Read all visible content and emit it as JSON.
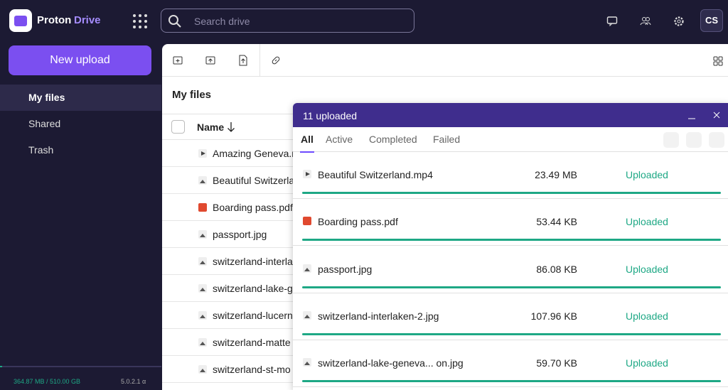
{
  "brand": {
    "name": "Proton",
    "product": "Drive"
  },
  "search": {
    "placeholder": "Search drive"
  },
  "user": {
    "initials": "CS"
  },
  "sidebar": {
    "new_upload": "New upload",
    "nav": [
      "My files",
      "Shared",
      "Trash"
    ],
    "storage": "364.87 MB / 510.00 GB",
    "version": "5.0.2.1 α"
  },
  "main": {
    "title": "My files",
    "column": "Name",
    "files": [
      "Amazing Geneva.m",
      "Beautiful Switzerla",
      "Boarding pass.pdf",
      "passport.jpg",
      "switzerland-interla",
      "switzerland-lake-g",
      "switzerland-lucern",
      "switzerland-matte",
      "switzerland-st-mo"
    ]
  },
  "upload_panel": {
    "title": "11 uploaded",
    "tabs": [
      "All",
      "Active",
      "Completed",
      "Failed"
    ],
    "items": [
      {
        "name": "Beautiful Switzerland.mp4",
        "size": "23.49 MB",
        "status": "Uploaded"
      },
      {
        "name": "Boarding pass.pdf",
        "size": "53.44 KB",
        "status": "Uploaded"
      },
      {
        "name": "passport.jpg",
        "size": "86.08 KB",
        "status": "Uploaded"
      },
      {
        "name": "switzerland-interlaken-2.jpg",
        "size": "107.96 KB",
        "status": "Uploaded"
      },
      {
        "name": "switzerland-lake-geneva... on.jpg",
        "size": "59.70 KB",
        "status": "Uploaded"
      }
    ]
  }
}
